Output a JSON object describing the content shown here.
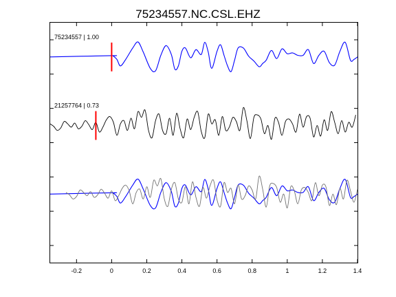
{
  "chart_data": {
    "type": "line",
    "title": "75234557.NC.CSL.EHZ",
    "xlim": [
      -0.35,
      1.4
    ],
    "x_ticks": [
      -0.2,
      0,
      0.2,
      0.4,
      0.6,
      0.8,
      1.0,
      1.2,
      1.4
    ],
    "x_tick_labels": [
      "-0.2",
      "0",
      "0.2",
      "0.4",
      "0.6",
      "0.8",
      "1",
      "1.2",
      "1.4"
    ],
    "xlabel": "",
    "ylabel": "",
    "grid": false,
    "colors": {
      "master": "#0000ff",
      "neighbor": "#000000",
      "neighbor_overlay": "#707070",
      "pick": "#ff0000",
      "axes": "#000000"
    },
    "traces": [
      {
        "label": "75234557 | 1.00",
        "pick_time": 0.0,
        "offset_row": 1,
        "series": [
          {
            "name": "75234557",
            "color": "#0000ff",
            "times": [
              -0.35,
              0.0,
              0.01,
              0.03,
              0.05,
              0.08,
              0.12,
              0.15,
              0.18,
              0.22,
              0.25,
              0.28,
              0.31,
              0.34,
              0.36,
              0.38,
              0.4,
              0.42,
              0.45,
              0.48,
              0.51,
              0.53,
              0.55,
              0.57,
              0.6,
              0.62,
              0.64,
              0.66,
              0.68,
              0.7,
              0.72,
              0.75,
              0.78,
              0.81,
              0.84,
              0.86,
              0.88,
              0.91,
              0.94,
              0.97,
              1.0,
              1.03,
              1.06,
              1.09,
              1.12,
              1.15,
              1.18,
              1.21,
              1.24,
              1.27,
              1.3,
              1.33,
              1.36,
              1.38,
              1.4
            ],
            "values": [
              0.0,
              0.08,
              0.05,
              -0.15,
              -0.55,
              -0.15,
              0.55,
              0.92,
              0.3,
              -0.7,
              -0.85,
              0.1,
              0.7,
              0.15,
              -0.75,
              -0.55,
              0.35,
              0.55,
              -0.05,
              0.45,
              0.15,
              0.9,
              0.3,
              -0.7,
              0.35,
              0.75,
              0.1,
              -0.55,
              -0.9,
              -0.2,
              0.55,
              0.55,
              0.05,
              -0.25,
              -0.6,
              -0.4,
              -0.2,
              0.4,
              -0.1,
              0.5,
              0.2,
              0.25,
              0.1,
              0.1,
              0.45,
              -0.4,
              0.1,
              0.35,
              -0.35,
              -0.5,
              0.35,
              0.9,
              -0.2,
              -0.15,
              0.0
            ]
          }
        ]
      },
      {
        "label": "21257764 | 0.73",
        "pick_time": -0.09,
        "offset_row": 3,
        "series": [
          {
            "name": "21257764",
            "color": "#000000",
            "times": [
              -0.35,
              -0.33,
              -0.31,
              -0.29,
              -0.27,
              -0.25,
              -0.23,
              -0.21,
              -0.19,
              -0.17,
              -0.15,
              -0.13,
              -0.11,
              -0.09,
              -0.07,
              -0.05,
              -0.03,
              -0.01,
              0.01,
              0.03,
              0.05,
              0.07,
              0.09,
              0.11,
              0.13,
              0.15,
              0.17,
              0.19,
              0.21,
              0.23,
              0.25,
              0.27,
              0.29,
              0.31,
              0.33,
              0.35,
              0.37,
              0.39,
              0.41,
              0.43,
              0.45,
              0.47,
              0.49,
              0.51,
              0.53,
              0.55,
              0.57,
              0.59,
              0.61,
              0.63,
              0.65,
              0.67,
              0.69,
              0.71,
              0.73,
              0.75,
              0.77,
              0.79,
              0.81,
              0.83,
              0.85,
              0.87,
              0.89,
              0.91,
              0.93,
              0.95,
              0.97,
              0.99,
              1.01,
              1.03,
              1.05,
              1.07,
              1.09,
              1.11,
              1.13,
              1.15,
              1.17,
              1.19,
              1.21,
              1.23,
              1.25,
              1.27,
              1.29,
              1.31,
              1.33,
              1.35,
              1.37,
              1.39
            ],
            "values": [
              0.1,
              -0.05,
              -0.3,
              -0.15,
              0.25,
              0.1,
              -0.1,
              0.15,
              -0.2,
              -0.05,
              0.3,
              0.05,
              -0.25,
              0.2,
              -0.4,
              -0.1,
              0.35,
              0.55,
              0.2,
              -0.6,
              0.1,
              0.3,
              -0.3,
              0.45,
              -0.2,
              0.85,
              0.5,
              0.95,
              -0.3,
              -0.75,
              0.3,
              0.7,
              -0.3,
              -0.5,
              0.45,
              -0.6,
              0.75,
              -0.2,
              -0.75,
              0.4,
              -0.25,
              0.5,
              0.85,
              -0.35,
              -0.75,
              0.7,
              0.1,
              0.35,
              -0.6,
              0.55,
              -0.3,
              -0.1,
              0.5,
              0.25,
              -0.3,
              1.1,
              0.3,
              -0.8,
              0.5,
              0.65,
              0.4,
              -0.5,
              0.0,
              -0.85,
              0.45,
              0.2,
              -0.6,
              0.25,
              0.4,
              0.1,
              -0.4,
              0.7,
              -0.1,
              0.55,
              0.45,
              -0.7,
              0.0,
              -0.65,
              0.35,
              -0.3,
              0.85,
              0.2,
              -0.5,
              0.3,
              -0.4,
              0.2,
              -0.1,
              0.65
            ]
          }
        ]
      },
      {
        "label": "",
        "pick_time": null,
        "offset_row": 5,
        "series": [
          {
            "name": "75234557",
            "color": "#0000ff",
            "source": 0
          },
          {
            "name": "21257764",
            "color": "#707070",
            "source": 1,
            "shift": 0.09
          }
        ]
      }
    ],
    "y_tick_rows": [
      0.5,
      1.5,
      2.5,
      3.5,
      4.5,
      5.5,
      6.5
    ],
    "n_rows": 7
  }
}
